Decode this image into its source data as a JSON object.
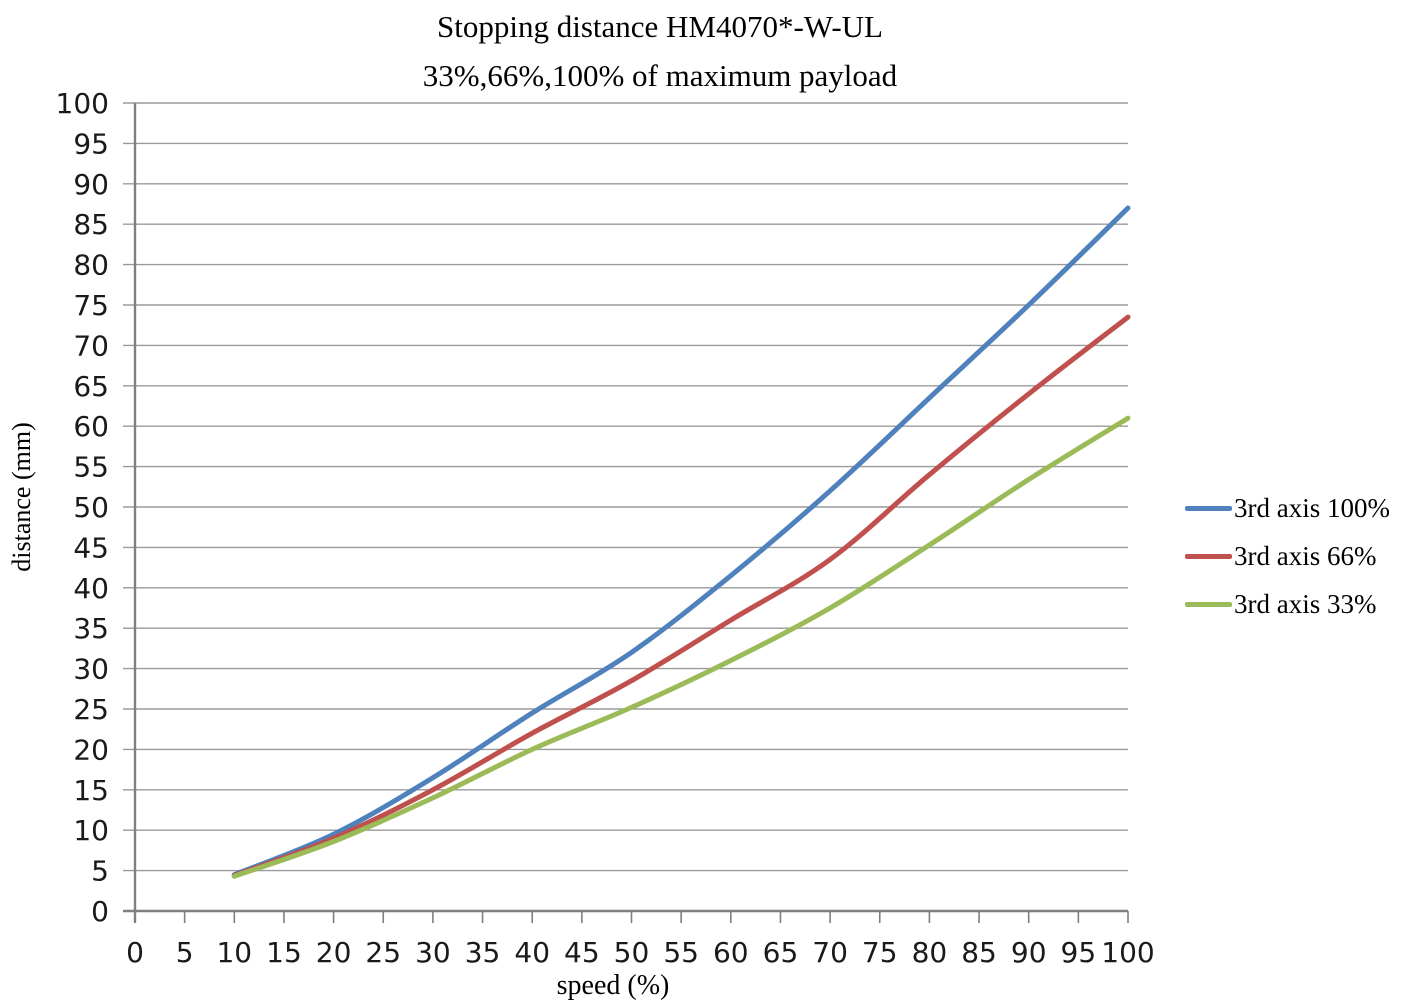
{
  "chart": {
    "accent_colors": {
      "series_blue": "#4F81BD",
      "series_red": "#C0504D",
      "series_green": "#9BBB59",
      "gridline": "#9a9a9a",
      "axis": "#7f7f7f"
    }
  },
  "chart_data": {
    "type": "line",
    "title": "Stopping distance HM4070*-W-UL",
    "subtitle": "33%,66%,100% of maximum payload",
    "xlabel": "speed (%)",
    "ylabel": "distance (mm)",
    "xlim": [
      0,
      100
    ],
    "ylim": [
      0,
      100
    ],
    "x_ticks": [
      0,
      5,
      10,
      15,
      20,
      25,
      30,
      35,
      40,
      45,
      50,
      55,
      60,
      65,
      70,
      75,
      80,
      85,
      90,
      95,
      100
    ],
    "y_ticks": [
      0,
      5,
      10,
      15,
      20,
      25,
      30,
      35,
      40,
      45,
      50,
      55,
      60,
      65,
      70,
      75,
      80,
      85,
      90,
      95,
      100
    ],
    "grid": true,
    "legend_position": "right",
    "x": [
      10,
      20,
      30,
      40,
      50,
      60,
      70,
      80,
      90,
      100
    ],
    "series": [
      {
        "name": "3rd axis 100%",
        "color": "#4F81BD",
        "values": [
          4.5,
          9.5,
          16.5,
          24.5,
          32.0,
          41.5,
          52.0,
          63.5,
          75.0,
          87.0
        ]
      },
      {
        "name": "3rd axis 66%",
        "color": "#C0504D",
        "values": [
          4.4,
          9.0,
          15.0,
          22.0,
          28.5,
          36.0,
          43.5,
          54.0,
          64.0,
          73.5
        ]
      },
      {
        "name": "3rd axis 33%",
        "color": "#9BBB59",
        "values": [
          4.3,
          8.6,
          14.0,
          20.0,
          25.2,
          31.0,
          37.5,
          45.3,
          53.4,
          61.0
        ]
      }
    ]
  }
}
